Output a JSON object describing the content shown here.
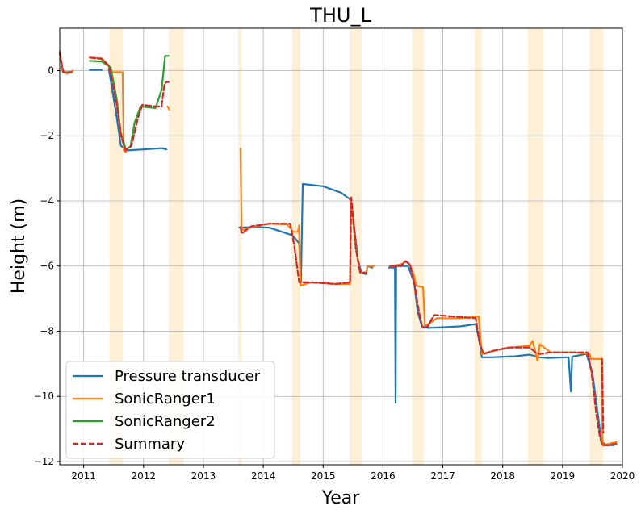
{
  "chart_data": {
    "type": "line",
    "title": "THU_L",
    "xlabel": "Year",
    "ylabel": "Height (m)",
    "xlim": [
      2010.6,
      2020.0
    ],
    "ylim": [
      -12.1,
      1.3
    ],
    "x_ticks": [
      2011,
      2012,
      2013,
      2014,
      2015,
      2016,
      2017,
      2018,
      2019,
      2020
    ],
    "x_tick_labels": [
      "2011",
      "2012",
      "2013",
      "2014",
      "2015",
      "2016",
      "2017",
      "2018",
      "2019",
      "2020"
    ],
    "y_ticks": [
      0,
      -2,
      -4,
      -6,
      -8,
      -10,
      -12
    ],
    "y_tick_labels": [
      "0",
      "−2",
      "−4",
      "−6",
      "−8",
      "−10",
      "−12"
    ],
    "grid": true,
    "legend_position": "lower-left",
    "shaded_color": "#fde9c9",
    "shaded_periods": [
      [
        2011.43,
        2011.65
      ],
      [
        2012.42,
        2012.67
      ],
      [
        2013.58,
        2013.64
      ],
      [
        2014.48,
        2014.62
      ],
      [
        2015.44,
        2015.64
      ],
      [
        2016.49,
        2016.68
      ],
      [
        2017.53,
        2017.65
      ],
      [
        2018.42,
        2018.67
      ],
      [
        2019.45,
        2019.68
      ]
    ],
    "series": [
      {
        "name": "Pressure transducer",
        "color": "#1f77b4",
        "dash": false,
        "segments": [
          [
            [
              2011.1,
              0.02
            ],
            [
              2011.3,
              0.02
            ]
          ],
          [
            [
              2011.42,
              0.05
            ],
            [
              2011.55,
              -1.4
            ],
            [
              2011.62,
              -2.3
            ],
            [
              2011.72,
              -2.45
            ],
            [
              2012.0,
              -2.42
            ],
            [
              2012.3,
              -2.38
            ],
            [
              2012.38,
              -2.42
            ]
          ],
          [
            [
              2013.6,
              -4.82
            ],
            [
              2013.85,
              -4.8
            ],
            [
              2014.1,
              -4.82
            ],
            [
              2014.48,
              -5.05
            ],
            [
              2014.6,
              -5.3
            ],
            [
              2014.63,
              -6.5
            ],
            [
              2014.66,
              -3.48
            ],
            [
              2015.0,
              -3.55
            ],
            [
              2015.3,
              -3.75
            ],
            [
              2015.45,
              -3.95
            ],
            [
              2015.5,
              -4.5
            ],
            [
              2015.58,
              -5.8
            ],
            [
              2015.64,
              -6.2
            ],
            [
              2015.72,
              -6.25
            ],
            [
              2015.74,
              -6.0
            ],
            [
              2015.82,
              -6.05
            ]
          ],
          [
            [
              2016.1,
              -6.05
            ],
            [
              2016.2,
              -6.05
            ],
            [
              2016.21,
              -10.2
            ],
            [
              2016.22,
              -6.0
            ],
            [
              2016.3,
              -6.0
            ],
            [
              2016.42,
              -6.0
            ],
            [
              2016.52,
              -6.5
            ],
            [
              2016.58,
              -7.4
            ],
            [
              2016.65,
              -7.85
            ],
            [
              2016.75,
              -7.9
            ],
            [
              2017.0,
              -7.88
            ],
            [
              2017.3,
              -7.85
            ],
            [
              2017.55,
              -7.78
            ],
            [
              2017.62,
              -8.4
            ],
            [
              2017.65,
              -8.8
            ],
            [
              2017.8,
              -8.8
            ],
            [
              2018.2,
              -8.77
            ],
            [
              2018.45,
              -8.72
            ],
            [
              2018.6,
              -8.8
            ],
            [
              2018.75,
              -8.82
            ],
            [
              2019.1,
              -8.8
            ],
            [
              2019.14,
              -9.85
            ],
            [
              2019.16,
              -8.78
            ],
            [
              2019.4,
              -8.7
            ],
            [
              2019.5,
              -9.3
            ],
            [
              2019.6,
              -10.7
            ],
            [
              2019.65,
              -11.4
            ],
            [
              2019.75,
              -11.5
            ],
            [
              2019.85,
              -11.5
            ]
          ]
        ]
      },
      {
        "name": "SonicRanger1",
        "color": "#ff7f0e",
        "dash": false,
        "segments": [
          [
            [
              2010.6,
              0.6
            ],
            [
              2010.65,
              -0.02
            ],
            [
              2010.72,
              -0.1
            ],
            [
              2010.82,
              0.0
            ]
          ],
          [
            [
              2011.1,
              0.4
            ],
            [
              2011.3,
              0.38
            ],
            [
              2011.42,
              0.15
            ],
            [
              2011.48,
              -0.05
            ],
            [
              2011.65,
              -0.05
            ],
            [
              2011.67,
              -2.45
            ],
            [
              2011.7,
              -2.5
            ]
          ],
          [
            [
              2012.4,
              -1.1
            ],
            [
              2012.43,
              -1.2
            ]
          ],
          [
            [
              2013.62,
              -2.4
            ],
            [
              2013.64,
              -4.9
            ],
            [
              2013.8,
              -4.8
            ],
            [
              2014.1,
              -4.7
            ],
            [
              2014.4,
              -4.72
            ],
            [
              2014.5,
              -4.95
            ],
            [
              2014.58,
              -4.95
            ],
            [
              2014.6,
              -4.75
            ],
            [
              2014.62,
              -6.6
            ],
            [
              2014.8,
              -6.5
            ],
            [
              2015.2,
              -6.55
            ],
            [
              2015.45,
              -6.55
            ],
            [
              2015.46,
              -3.9
            ],
            [
              2015.55,
              -5.5
            ],
            [
              2015.62,
              -6.2
            ],
            [
              2015.72,
              -6.2
            ],
            [
              2015.74,
              -6.0
            ],
            [
              2015.85,
              -6.0
            ]
          ],
          [
            [
              2016.12,
              -6.0
            ],
            [
              2016.3,
              -5.95
            ],
            [
              2016.38,
              -5.85
            ],
            [
              2016.45,
              -5.95
            ],
            [
              2016.52,
              -6.3
            ],
            [
              2016.55,
              -6.6
            ],
            [
              2016.67,
              -6.65
            ],
            [
              2016.7,
              -7.85
            ],
            [
              2016.9,
              -7.6
            ],
            [
              2017.3,
              -7.6
            ],
            [
              2017.6,
              -7.55
            ],
            [
              2017.62,
              -8.0
            ],
            [
              2017.65,
              -8.7
            ],
            [
              2017.85,
              -8.6
            ],
            [
              2018.1,
              -8.5
            ],
            [
              2018.45,
              -8.45
            ],
            [
              2018.5,
              -8.3
            ],
            [
              2018.58,
              -8.9
            ],
            [
              2018.62,
              -8.4
            ],
            [
              2018.8,
              -8.65
            ],
            [
              2019.2,
              -8.65
            ],
            [
              2019.45,
              -8.7
            ],
            [
              2019.47,
              -8.85
            ],
            [
              2019.65,
              -8.85
            ],
            [
              2019.67,
              -11.5
            ],
            [
              2019.9,
              -11.4
            ]
          ]
        ]
      },
      {
        "name": "SonicRanger2",
        "color": "#2ca02c",
        "dash": false,
        "segments": [
          [
            [
              2010.6,
              0.5
            ],
            [
              2010.66,
              -0.05
            ],
            [
              2010.78,
              -0.05
            ]
          ],
          [
            [
              2011.1,
              0.3
            ],
            [
              2011.3,
              0.28
            ],
            [
              2011.45,
              0.1
            ],
            [
              2011.55,
              -0.85
            ],
            [
              2011.62,
              -1.9
            ],
            [
              2011.7,
              -2.4
            ],
            [
              2011.78,
              -2.35
            ],
            [
              2011.85,
              -1.6
            ],
            [
              2011.95,
              -1.1
            ],
            [
              2012.2,
              -1.15
            ],
            [
              2012.3,
              -0.6
            ],
            [
              2012.36,
              0.45
            ],
            [
              2012.42,
              0.45
            ]
          ]
        ]
      },
      {
        "name": "Summary",
        "color": "#d62728",
        "dash": true,
        "segments": [
          [
            [
              2010.6,
              0.55
            ],
            [
              2010.66,
              -0.05
            ],
            [
              2010.8,
              -0.05
            ]
          ],
          [
            [
              2011.1,
              0.4
            ],
            [
              2011.3,
              0.36
            ],
            [
              2011.42,
              0.15
            ],
            [
              2011.55,
              -1.0
            ],
            [
              2011.62,
              -2.0
            ],
            [
              2011.7,
              -2.45
            ],
            [
              2011.8,
              -2.3
            ],
            [
              2011.9,
              -1.5
            ],
            [
              2011.98,
              -1.05
            ],
            [
              2012.2,
              -1.1
            ],
            [
              2012.3,
              -1.1
            ],
            [
              2012.35,
              -0.4
            ],
            [
              2012.38,
              -0.35
            ],
            [
              2012.42,
              -0.35
            ]
          ],
          [
            [
              2013.62,
              -4.8
            ],
            [
              2013.64,
              -5.0
            ],
            [
              2013.8,
              -4.78
            ],
            [
              2014.1,
              -4.7
            ],
            [
              2014.45,
              -4.7
            ],
            [
              2014.52,
              -5.4
            ],
            [
              2014.6,
              -6.5
            ],
            [
              2014.8,
              -6.5
            ],
            [
              2015.2,
              -6.55
            ],
            [
              2015.45,
              -6.5
            ],
            [
              2015.47,
              -3.9
            ],
            [
              2015.55,
              -5.5
            ],
            [
              2015.62,
              -6.2
            ],
            [
              2015.72,
              -6.2
            ]
          ],
          [
            [
              2016.12,
              -6.0
            ],
            [
              2016.3,
              -6.0
            ],
            [
              2016.38,
              -5.85
            ],
            [
              2016.45,
              -5.95
            ],
            [
              2016.52,
              -6.5
            ],
            [
              2016.6,
              -7.4
            ],
            [
              2016.66,
              -7.9
            ],
            [
              2016.75,
              -7.85
            ],
            [
              2016.85,
              -7.5
            ],
            [
              2017.2,
              -7.55
            ],
            [
              2017.55,
              -7.6
            ],
            [
              2017.62,
              -8.4
            ],
            [
              2017.68,
              -8.7
            ],
            [
              2017.85,
              -8.6
            ],
            [
              2018.1,
              -8.5
            ],
            [
              2018.45,
              -8.5
            ],
            [
              2018.55,
              -8.65
            ],
            [
              2018.62,
              -8.7
            ],
            [
              2018.8,
              -8.65
            ],
            [
              2019.2,
              -8.65
            ],
            [
              2019.42,
              -8.65
            ],
            [
              2019.48,
              -9.2
            ],
            [
              2019.56,
              -10.5
            ],
            [
              2019.62,
              -11.2
            ],
            [
              2019.66,
              -11.5
            ],
            [
              2019.75,
              -11.5
            ],
            [
              2019.9,
              -11.45
            ]
          ]
        ]
      }
    ],
    "summary_jumps": [
      [
        [
          2019.66,
          -8.85
        ],
        [
          2019.68,
          -11.1
        ]
      ]
    ]
  }
}
